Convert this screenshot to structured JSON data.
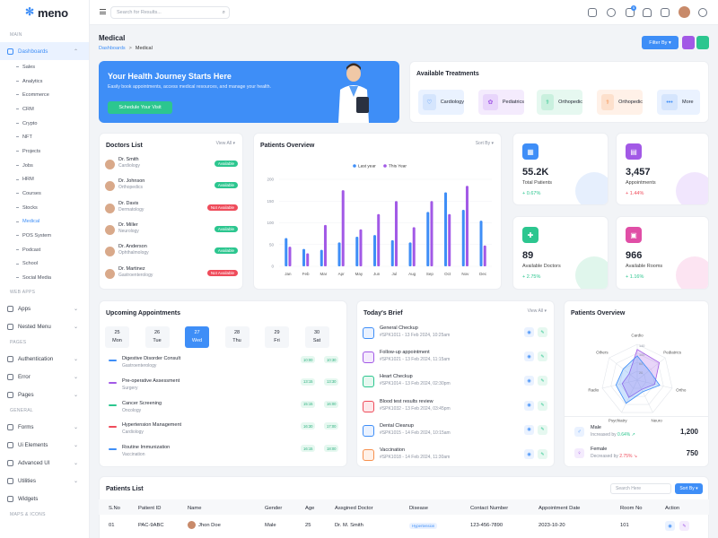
{
  "app": {
    "logo": "meno",
    "search_placeholder": "Search for Results...",
    "notif_count": "5"
  },
  "sidebar": {
    "sec_main": "MAIN",
    "dashboards": "Dashboards",
    "sub": [
      "Sales",
      "Analytics",
      "Ecommerce",
      "CRM",
      "Crypto",
      "NFT",
      "Projects",
      "Jobs",
      "HRM",
      "Courses",
      "Stocks",
      "Medical",
      "POS System",
      "Podcast",
      "School",
      "Social Media"
    ],
    "sec_webapps": "WEB APPS",
    "apps": "Apps",
    "nested": "Nested Menu",
    "sec_pages": "PAGES",
    "auth": "Authentication",
    "error": "Error",
    "pages": "Pages",
    "sec_general": "GENERAL",
    "forms": "Forms",
    "ui": "Ui Elements",
    "advui": "Advanced UI",
    "utilities": "Utilities",
    "widgets": "Widgets",
    "sec_maps": "MAPS & ICONS"
  },
  "page": {
    "title": "Medical",
    "bc_parent": "Dashboards",
    "bc_sep": ">",
    "bc_current": "Medical",
    "filter": "Filter By"
  },
  "hero": {
    "title": "Your Health Journey Starts Here",
    "subtitle": "Easily book appointments, access medical resources, and manage your health.",
    "button": "Schedule Your Visit"
  },
  "treatments": {
    "title": "Available Treatments",
    "items": [
      "Cardiology",
      "Pediatrics",
      "Orthopedic",
      "Orthopedic",
      "More"
    ]
  },
  "doctors": {
    "title": "Doctors List",
    "view_all": "View All",
    "rows": [
      {
        "name": "Dr. Smith",
        "spec": "Cardiology",
        "status": "Available"
      },
      {
        "name": "Dr. Johnson",
        "spec": "Orthopedics",
        "status": "Available"
      },
      {
        "name": "Dr. Davis",
        "spec": "Dermatology",
        "status": "Not Available"
      },
      {
        "name": "Dr. Miller",
        "spec": "Neurology",
        "status": "Available"
      },
      {
        "name": "Dr. Anderson",
        "spec": "Ophthalmology",
        "status": "Available"
      },
      {
        "name": "Dr. Martinez",
        "spec": "Gastroenterology",
        "status": "Not Available"
      }
    ]
  },
  "overview": {
    "title": "Patients Overview",
    "sort": "Sort By"
  },
  "stats": [
    {
      "value": "55.2K",
      "label": "Total Patients",
      "change": "+ 0.67%"
    },
    {
      "value": "3,457",
      "label": "Appointments",
      "change": "+ 1.44%"
    },
    {
      "value": "89",
      "label": "Available Doctors",
      "change": "+ 2.75%"
    },
    {
      "value": "966",
      "label": "Available Rooms",
      "change": "+ 1.16%"
    }
  ],
  "upcoming": {
    "title": "Upcoming Appointments",
    "days": [
      {
        "num": "25",
        "name": "Mon"
      },
      {
        "num": "26",
        "name": "Tue"
      },
      {
        "num": "27",
        "name": "Wed"
      },
      {
        "num": "28",
        "name": "Thu"
      },
      {
        "num": "29",
        "name": "Fri"
      },
      {
        "num": "30",
        "name": "Sat"
      }
    ],
    "items": [
      {
        "name": "Digestive Disorder Consult",
        "dept": "Gastroenterology",
        "start": "10:00",
        "end": "10:30"
      },
      {
        "name": "Pre-operative Assessment",
        "dept": "Surgery",
        "start": "13:15",
        "end": "13:30"
      },
      {
        "name": "Cancer Screening",
        "dept": "Oncology",
        "start": "15:15",
        "end": "16:00"
      },
      {
        "name": "Hypertension Management",
        "dept": "Cardiology",
        "start": "16:30",
        "end": "17:00"
      },
      {
        "name": "Routine Immunization",
        "dept": "Vaccination",
        "start": "16:15",
        "end": "18:00"
      }
    ]
  },
  "brief": {
    "title": "Today's Brief",
    "view_all": "View All",
    "items": [
      {
        "name": "General Checkup",
        "sub": "#SPK1011 - 13 Feb 2024, 10:25am"
      },
      {
        "name": "Follow-up appointment",
        "sub": "#SPK1021 - 13 Feb 2024, 11:15am"
      },
      {
        "name": "Heart Checkup",
        "sub": "#SPK1014 - 13 Feb 2024, 02:30pm"
      },
      {
        "name": "Blood test results review",
        "sub": "#SPK1032 - 13 Feb 2024, 03:45pm"
      },
      {
        "name": "Dental Cleanup",
        "sub": "#SPK1015 - 14 Feb 2024, 10:15am"
      },
      {
        "name": "Vaccination",
        "sub": "#SPK1018 - 14 Feb 2024, 11:30am"
      }
    ]
  },
  "patients_overview2": {
    "title": "Patients Overview",
    "radar_labels": [
      "Cardio",
      "Pediatrics",
      "Ortho",
      "Neuro",
      "Psychiatry",
      "Radio",
      "Others"
    ],
    "radar_ticks": [
      "140",
      "100",
      "60",
      "20"
    ],
    "male": {
      "label": "Male",
      "sub_prefix": "Increased by",
      "change": "0.64%",
      "arrow": "↗",
      "value": "1,200"
    },
    "female": {
      "label": "Female",
      "sub_prefix": "Decreased by",
      "change": "2.75%",
      "arrow": "↘",
      "value": "750"
    }
  },
  "patients": {
    "title": "Patients List",
    "search": "Search Here",
    "sort": "Sort By",
    "headers": [
      "S.No",
      "Patient ID",
      "Name",
      "Gender",
      "Age",
      "Assgined Doctor",
      "Disease",
      "Contact Number",
      "Appointment Date",
      "Room No",
      "Action"
    ],
    "rows": [
      {
        "sno": "01",
        "id": "PAC-9ABC",
        "name": "Jhon Doe",
        "gender": "Male",
        "age": "25",
        "doctor": "Dr. M. Smith",
        "disease": "Hypertension",
        "contact": "123-456-7890",
        "date": "2023-10-20",
        "room": "101"
      }
    ]
  },
  "colors": {
    "primary": "#3e8ef7",
    "green": "#2cc68f",
    "red": "#ef4c5b",
    "purple": "#a259e6",
    "orange": "#f7904d",
    "pink": "#e04ea6"
  },
  "chart_data": [
    {
      "type": "bar",
      "title": "",
      "categories": [
        "Jan",
        "Feb",
        "Mar",
        "Apr",
        "May",
        "Jun",
        "Jul",
        "Aug",
        "Sep",
        "Oct",
        "Nov",
        "Dec"
      ],
      "series": [
        {
          "name": "Last year",
          "color": "#3e8ef7",
          "values": [
            65,
            40,
            38,
            55,
            68,
            72,
            60,
            55,
            125,
            170,
            130,
            105
          ]
        },
        {
          "name": "This Year",
          "color": "#a259e6",
          "values": [
            45,
            30,
            95,
            175,
            85,
            120,
            150,
            90,
            150,
            120,
            185,
            48
          ]
        }
      ],
      "ylim": [
        0,
        200
      ],
      "yticks": [
        "0",
        "50",
        "100",
        "150",
        "200"
      ],
      "legend": "top-center"
    },
    {
      "type": "radar",
      "categories": [
        "Cardio",
        "Pediatrics",
        "Ortho",
        "Neuro",
        "Psychiatry",
        "Radio",
        "Others"
      ],
      "series": [
        {
          "name": "",
          "color": "#a259e6",
          "values": [
            120,
            110,
            70,
            40,
            75,
            60,
            40
          ]
        },
        {
          "name": "",
          "color": "#3e8ef7",
          "values": [
            95,
            60,
            90,
            50,
            100,
            85,
            70
          ]
        }
      ],
      "rlim": [
        0,
        140
      ]
    }
  ]
}
